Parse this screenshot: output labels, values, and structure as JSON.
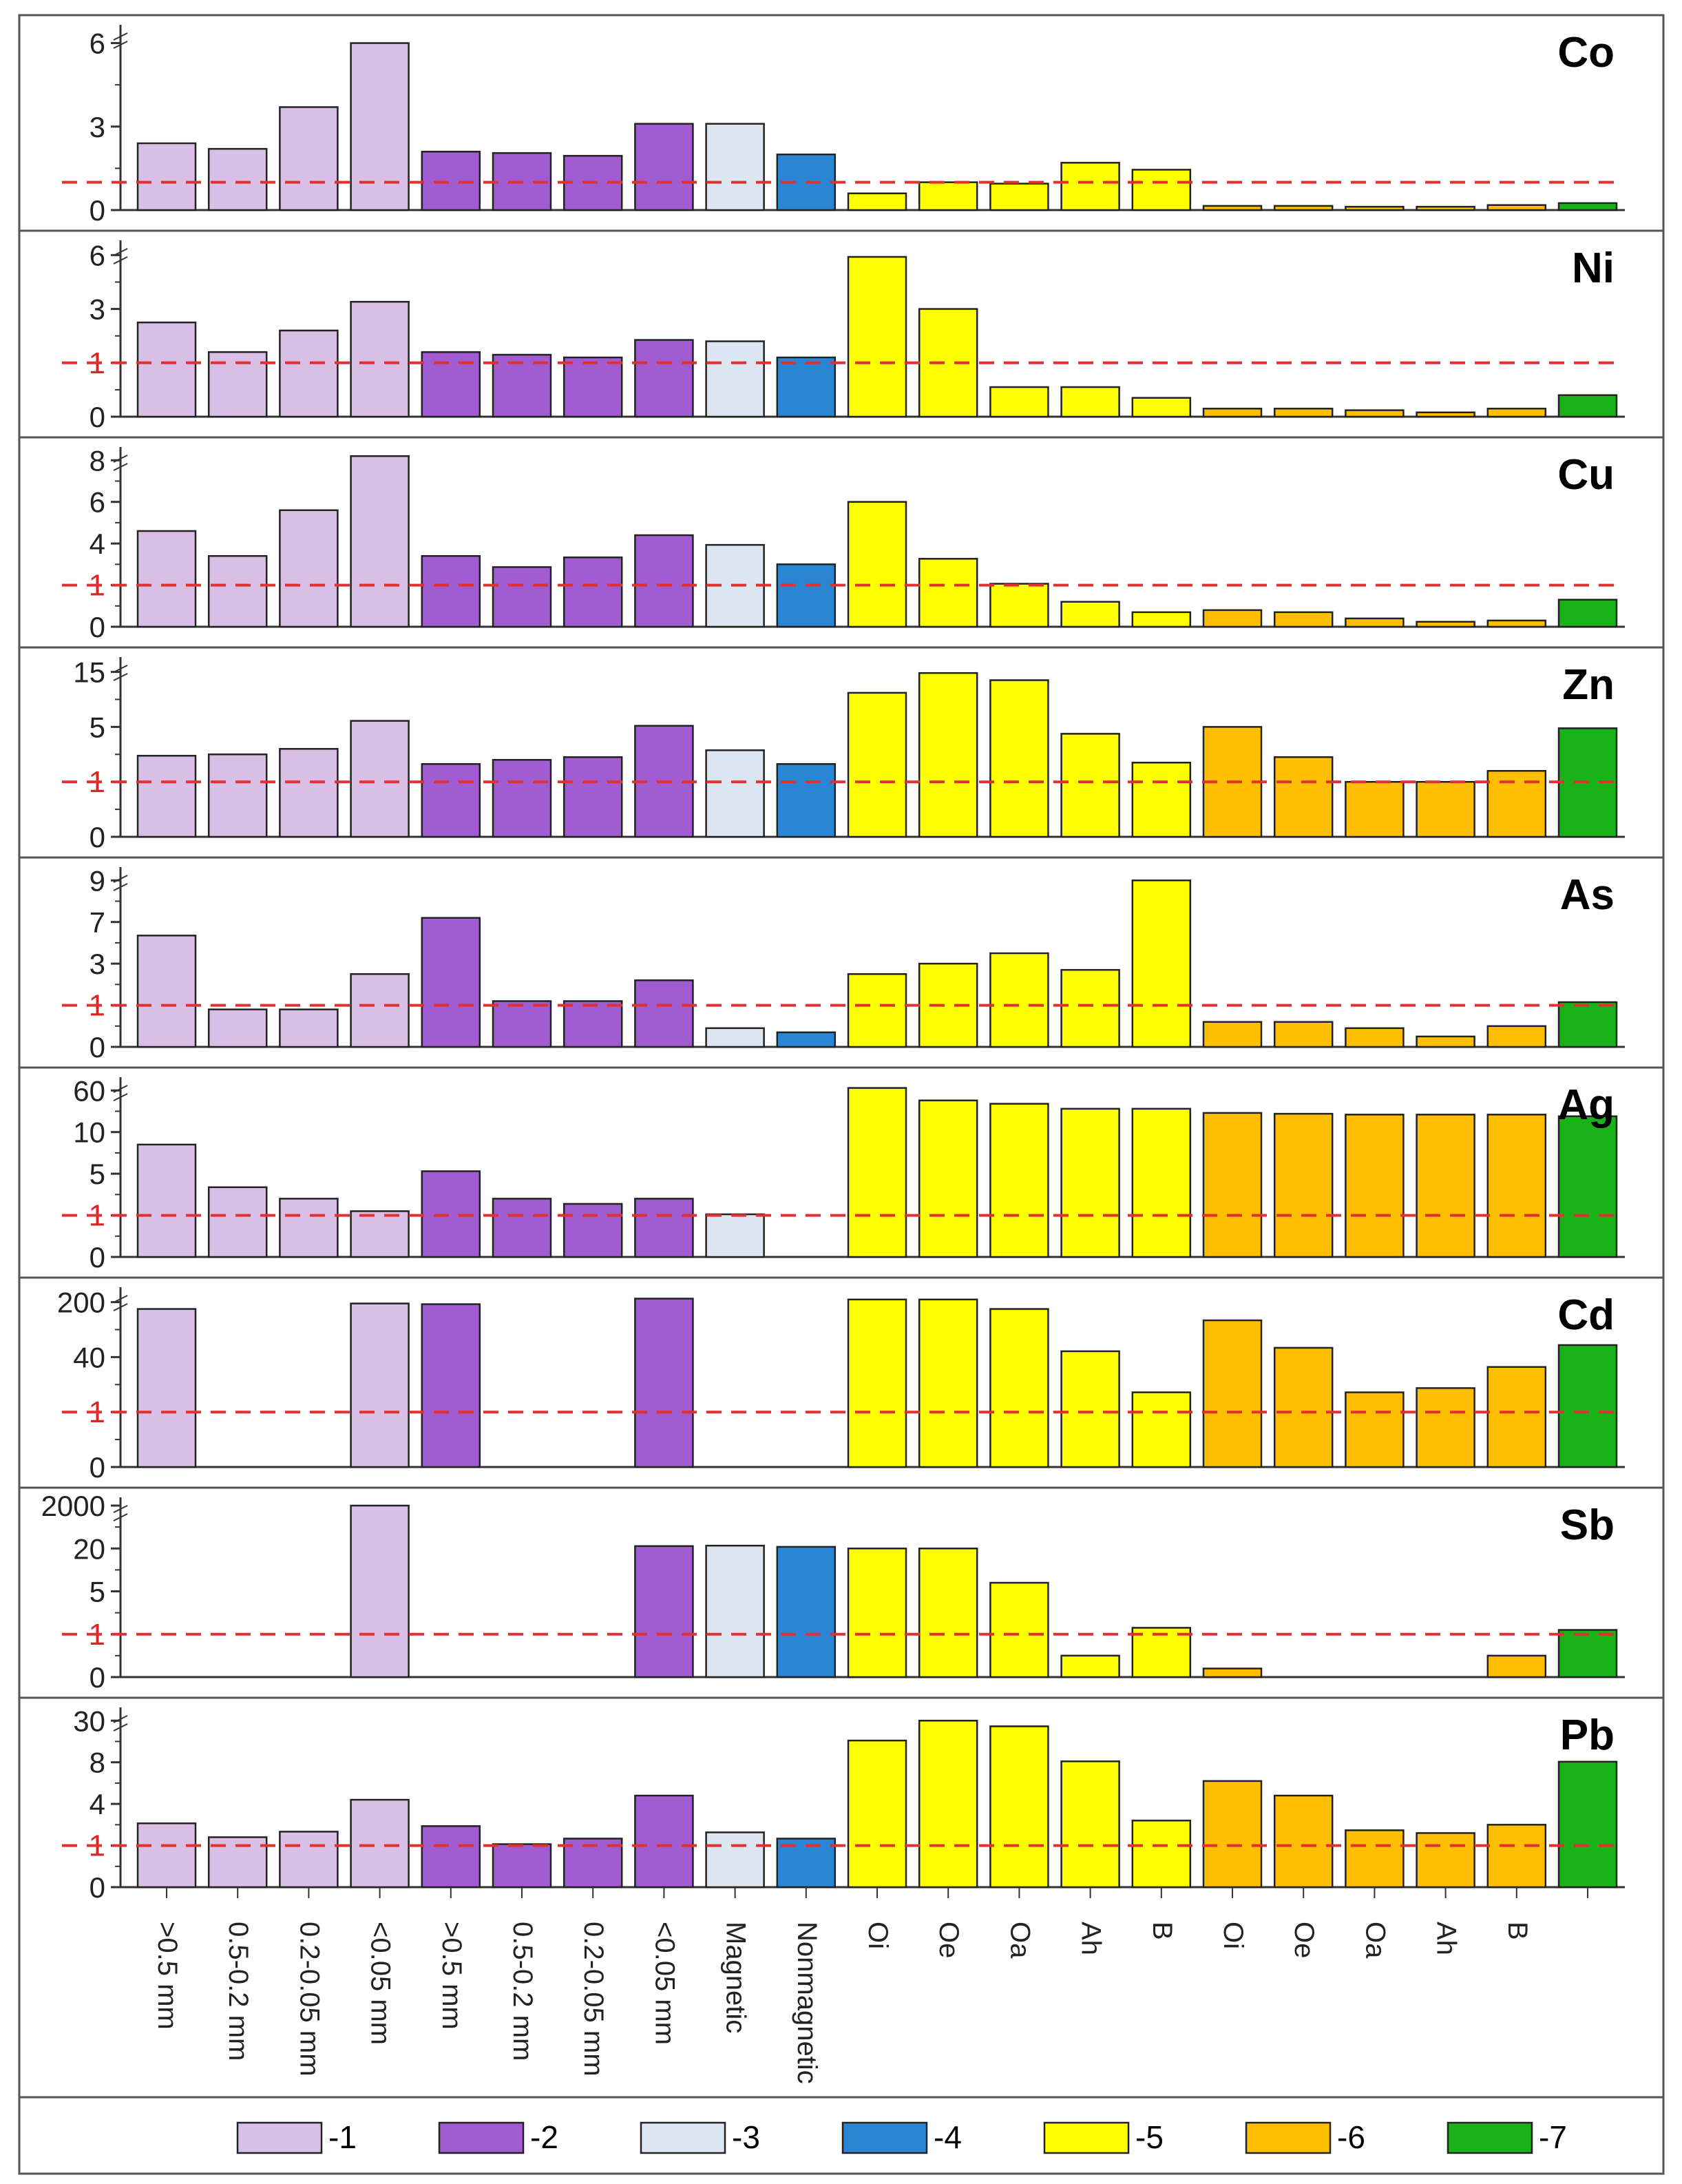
{
  "chart_data": {
    "type": "bar",
    "categories": [
      ">0.5 mm",
      "0.5-0.2 mm",
      "0.2-0.05 mm",
      "<0.05 mm",
      ">0.5 mm",
      "0.5-0.2 mm",
      "0.2-0.05 mm",
      "<0.05 mm",
      "Magnetic",
      "Nonmagnetic",
      "Oi",
      "Oe",
      "Oa",
      "Ah",
      "B",
      "Oi",
      "Oe",
      "Oa",
      "Ah",
      "B",
      ""
    ],
    "groups": [
      1,
      1,
      1,
      1,
      2,
      2,
      2,
      2,
      3,
      4,
      5,
      5,
      5,
      5,
      5,
      6,
      6,
      6,
      6,
      6,
      7
    ],
    "group_colors": {
      "1": "#d9bfe6",
      "2": "#a05cd0",
      "3": "#dbe6f0",
      "4": "#2a86d4",
      "5": "#ffff00",
      "6": "#ffbf00",
      "7": "#19b319"
    },
    "reference_line": {
      "value": 1,
      "label": "1",
      "color": "#e03030",
      "style": "dashed"
    },
    "legend": [
      "-1",
      "-2",
      "-3",
      "-4",
      "-5",
      "-6",
      "-7"
    ],
    "panels": [
      {
        "element": "Co",
        "ticks": [
          "0",
          "3",
          "6"
        ],
        "tick_values": [
          0,
          3,
          6
        ],
        "ylim": [
          0,
          6.2
        ],
        "values": [
          2.4,
          2.2,
          3.7,
          6.0,
          2.1,
          2.05,
          1.95,
          3.1,
          3.1,
          2.0,
          0.6,
          1.0,
          0.95,
          1.7,
          1.45,
          0.15,
          0.15,
          0.12,
          0.12,
          0.18,
          0.25
        ]
      },
      {
        "element": "Ni",
        "ticks": [
          "0",
          "1",
          "3",
          "6"
        ],
        "tick_values": [
          0,
          1,
          3,
          6
        ],
        "ylim": [
          0,
          6.2
        ],
        "values": [
          2.5,
          1.4,
          2.2,
          3.4,
          1.4,
          1.3,
          1.2,
          1.85,
          1.8,
          1.2,
          5.9,
          3.0,
          0.55,
          0.55,
          0.35,
          0.15,
          0.15,
          0.12,
          0.08,
          0.15,
          0.4
        ]
      },
      {
        "element": "Cu",
        "ticks": [
          "0",
          "1",
          "4",
          "6",
          "8"
        ],
        "tick_values": [
          0,
          1,
          4,
          6,
          8
        ],
        "ylim": [
          0,
          8.6
        ],
        "values": [
          4.6,
          3.1,
          5.6,
          8.5,
          3.1,
          2.3,
          3.0,
          4.4,
          3.9,
          2.5,
          6.0,
          2.9,
          1.1,
          0.6,
          0.35,
          0.4,
          0.35,
          0.2,
          0.12,
          0.15,
          0.65
        ]
      },
      {
        "element": "Zn",
        "ticks": [
          "0",
          "1",
          "5",
          "15"
        ],
        "tick_values": [
          0,
          1,
          5,
          15
        ],
        "ylim": [
          0,
          16.5
        ],
        "values": [
          2.9,
          3.0,
          3.4,
          6.1,
          2.3,
          2.6,
          2.8,
          5.2,
          3.3,
          2.3,
          11.2,
          14.8,
          13.5,
          4.5,
          2.4,
          5.0,
          2.8,
          1.0,
          1.0,
          1.8,
          4.9
        ]
      },
      {
        "element": "As",
        "ticks": [
          "0",
          "1",
          "3",
          "7",
          "9"
        ],
        "tick_values": [
          0,
          1,
          3,
          7,
          9
        ],
        "ylim": [
          0,
          9.3
        ],
        "values": [
          5.7,
          0.9,
          0.9,
          2.5,
          7.2,
          1.2,
          1.2,
          2.2,
          0.45,
          0.35,
          2.5,
          3.0,
          4.0,
          2.7,
          9.0,
          0.6,
          0.6,
          0.45,
          0.25,
          0.5,
          1.15
        ]
      },
      {
        "element": "Ag",
        "ticks": [
          "0",
          "1",
          "5",
          "10",
          "60"
        ],
        "tick_values": [
          0,
          1,
          5,
          10,
          60
        ],
        "ylim": [
          0,
          70
        ],
        "values": [
          8.5,
          3.7,
          2.6,
          1.4,
          5.3,
          2.6,
          2.1,
          2.6,
          1.1,
          0,
          65,
          48,
          44,
          38,
          38,
          33,
          32,
          31,
          31,
          31,
          29
        ]
      },
      {
        "element": "Cd",
        "ticks": [
          "0",
          "1",
          "40",
          "200"
        ],
        "tick_values": [
          0,
          1,
          40,
          200
        ],
        "ylim": [
          0,
          215
        ],
        "values": [
          180,
          0,
          0,
          196,
          194,
          0,
          0,
          208,
          0,
          0,
          206,
          206,
          180,
          57,
          15,
          147,
          67,
          15,
          18,
          33,
          75
        ]
      },
      {
        "element": "Sb",
        "ticks": [
          "0",
          "1",
          "5",
          "20",
          "2000"
        ],
        "tick_values": [
          0,
          1,
          5,
          20,
          2000
        ],
        "ylim": [
          0,
          2000
        ],
        "values": [
          0,
          0,
          0,
          2000,
          0,
          0,
          0,
          130,
          150,
          95,
          20,
          20,
          8,
          0.5,
          1.6,
          0.2,
          0,
          0,
          0,
          0.5,
          1.4
        ]
      },
      {
        "element": "Pb",
        "ticks": [
          "0",
          "1",
          "4",
          "8",
          "30"
        ],
        "tick_values": [
          0,
          1,
          4,
          8,
          30
        ],
        "ylim": [
          0,
          32
        ],
        "values": [
          2.6,
          1.6,
          2.0,
          4.4,
          2.4,
          1.1,
          1.5,
          4.8,
          1.95,
          1.5,
          19.5,
          30,
          27,
          8.5,
          2.8,
          6.2,
          4.8,
          2.1,
          1.9,
          2.5,
          8.3
        ]
      }
    ]
  }
}
